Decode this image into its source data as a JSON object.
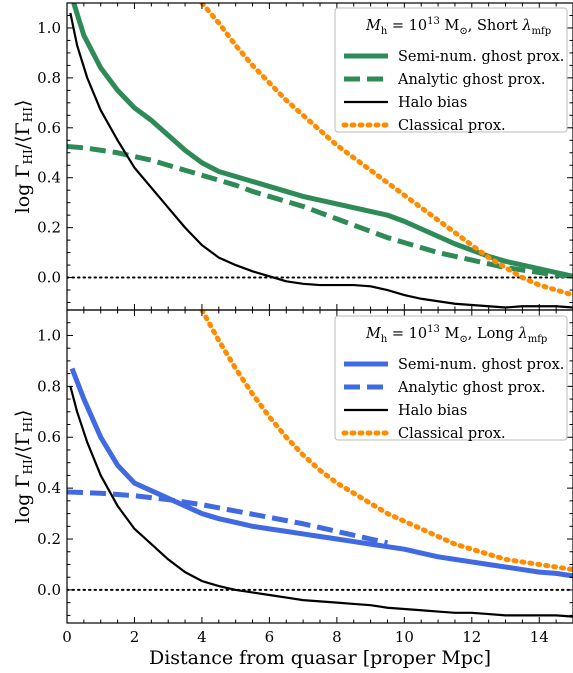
{
  "chart_data": [
    {
      "type": "line",
      "panel": "top",
      "xlabel": "",
      "ylabel": "log Γ_HI/⟨Γ_HI⟩",
      "xlim": [
        0,
        15
      ],
      "ylim": [
        -0.13,
        1.1
      ],
      "xticks": [
        0,
        2,
        4,
        6,
        8,
        10,
        12,
        14
      ],
      "yticks": [
        0.0,
        0.2,
        0.4,
        0.6,
        0.8,
        1.0
      ],
      "ytick_labels": [
        "0.0",
        "0.2",
        "0.4",
        "0.6",
        "0.8",
        "1.0"
      ],
      "legend_title": "M_h = 10^13 M_⊙, Short λ_mfp",
      "legend_position": "top-right",
      "reference_line": {
        "y": 0.0,
        "style": "dotted",
        "color": "#000000"
      },
      "series": [
        {
          "name": "Semi-num. ghost prox.",
          "color": "#2e8b57",
          "style": "solid",
          "width": "thick",
          "x": [
            0.2,
            0.5,
            1.0,
            1.5,
            2.0,
            2.5,
            3.0,
            3.5,
            4.0,
            4.5,
            5.0,
            5.5,
            6.0,
            6.5,
            7.0,
            7.5,
            8.0,
            8.5,
            9.0,
            9.5,
            10.0,
            10.5,
            11.0,
            11.5,
            12.0,
            12.5,
            13.0,
            13.5,
            14.0,
            14.5,
            15.0
          ],
          "y": [
            1.1,
            0.97,
            0.84,
            0.75,
            0.68,
            0.63,
            0.57,
            0.51,
            0.46,
            0.425,
            0.405,
            0.385,
            0.365,
            0.345,
            0.325,
            0.31,
            0.295,
            0.28,
            0.265,
            0.25,
            0.225,
            0.195,
            0.165,
            0.135,
            0.11,
            0.085,
            0.065,
            0.05,
            0.035,
            0.02,
            0.005
          ]
        },
        {
          "name": "Analytic ghost prox.",
          "color": "#2e8b57",
          "style": "dashed",
          "width": "thick",
          "x": [
            0.0,
            0.5,
            1.0,
            1.5,
            2.0,
            2.5,
            3.0,
            3.5,
            4.0,
            4.5,
            5.0,
            5.5,
            6.0,
            6.5,
            7.0,
            7.5,
            8.0,
            8.5,
            9.0,
            9.5,
            10.0,
            10.5,
            11.0,
            11.5,
            12.0,
            12.5,
            13.0,
            13.5,
            14.0,
            14.5,
            15.0
          ],
          "y": [
            0.525,
            0.52,
            0.51,
            0.5,
            0.485,
            0.47,
            0.45,
            0.43,
            0.41,
            0.39,
            0.37,
            0.345,
            0.325,
            0.305,
            0.285,
            0.26,
            0.235,
            0.21,
            0.185,
            0.16,
            0.14,
            0.12,
            0.1,
            0.085,
            0.07,
            0.055,
            0.04,
            0.03,
            0.02,
            0.01,
            0.005
          ]
        },
        {
          "name": "Halo bias",
          "color": "#000000",
          "style": "solid",
          "width": "thin",
          "x": [
            0.1,
            0.3,
            0.6,
            1.0,
            1.5,
            2.0,
            2.5,
            3.0,
            3.5,
            4.0,
            4.5,
            5.0,
            5.5,
            6.0,
            6.5,
            7.0,
            7.5,
            8.0,
            8.5,
            9.0,
            9.5,
            10.0,
            10.5,
            11.0,
            11.5,
            12.0,
            12.5,
            13.0,
            13.5,
            14.0,
            14.5,
            15.0
          ],
          "y": [
            1.06,
            0.93,
            0.8,
            0.67,
            0.55,
            0.44,
            0.36,
            0.28,
            0.2,
            0.13,
            0.08,
            0.05,
            0.025,
            0.005,
            -0.015,
            -0.025,
            -0.03,
            -0.03,
            -0.03,
            -0.035,
            -0.05,
            -0.07,
            -0.085,
            -0.095,
            -0.105,
            -0.11,
            -0.115,
            -0.12,
            -0.115,
            -0.115,
            -0.115,
            -0.12
          ]
        },
        {
          "name": "Classical prox.",
          "color": "#ff8c00",
          "style": "dotted",
          "width": "thick",
          "x": [
            4.0,
            4.5,
            5.0,
            5.5,
            6.0,
            6.5,
            7.0,
            7.5,
            8.0,
            8.5,
            9.0,
            9.5,
            10.0,
            10.5,
            11.0,
            11.5,
            12.0,
            12.5,
            13.0,
            13.5,
            14.0,
            14.5,
            15.0
          ],
          "y": [
            1.1,
            1.02,
            0.93,
            0.85,
            0.78,
            0.71,
            0.65,
            0.59,
            0.53,
            0.48,
            0.43,
            0.38,
            0.33,
            0.28,
            0.23,
            0.18,
            0.13,
            0.08,
            0.04,
            0.0,
            -0.03,
            -0.05,
            -0.07
          ]
        }
      ]
    },
    {
      "type": "line",
      "panel": "bottom",
      "xlabel": "Distance from quasar [proper Mpc]",
      "ylabel": "log Γ_HI/⟨Γ_HI⟩",
      "xlim": [
        0,
        15
      ],
      "ylim": [
        -0.13,
        1.1
      ],
      "xticks": [
        0,
        2,
        4,
        6,
        8,
        10,
        12,
        14
      ],
      "xtick_labels": [
        "0",
        "2",
        "4",
        "6",
        "8",
        "10",
        "12",
        "14"
      ],
      "yticks": [
        0.0,
        0.2,
        0.4,
        0.6,
        0.8,
        1.0
      ],
      "ytick_labels": [
        "0.0",
        "0.2",
        "0.4",
        "0.6",
        "0.8",
        "1.0"
      ],
      "legend_title": "M_h = 10^13 M_⊙, Long λ_mfp",
      "legend_position": "top-right",
      "reference_line": {
        "y": 0.0,
        "style": "dotted",
        "color": "#000000"
      },
      "series": [
        {
          "name": "Semi-num. ghost prox.",
          "color": "#4169e1",
          "style": "solid",
          "width": "thick",
          "x": [
            0.15,
            0.5,
            1.0,
            1.5,
            2.0,
            2.5,
            3.0,
            3.5,
            4.0,
            4.5,
            5.0,
            5.5,
            6.0,
            6.5,
            7.0,
            7.5,
            8.0,
            8.5,
            9.0,
            9.5,
            10.0,
            10.5,
            11.0,
            11.5,
            12.0,
            12.5,
            13.0,
            13.5,
            14.0,
            14.5,
            15.0
          ],
          "y": [
            0.87,
            0.75,
            0.6,
            0.49,
            0.42,
            0.39,
            0.36,
            0.33,
            0.3,
            0.28,
            0.265,
            0.25,
            0.24,
            0.23,
            0.22,
            0.21,
            0.2,
            0.19,
            0.18,
            0.17,
            0.16,
            0.145,
            0.13,
            0.12,
            0.11,
            0.1,
            0.09,
            0.08,
            0.07,
            0.065,
            0.055
          ]
        },
        {
          "name": "Analytic ghost prox.",
          "color": "#4169e1",
          "style": "dashed",
          "width": "thick",
          "x": [
            0.0,
            1.0,
            2.0,
            3.0,
            4.0,
            5.0,
            6.0,
            7.0,
            8.0,
            9.0,
            9.5
          ],
          "y": [
            0.385,
            0.38,
            0.37,
            0.355,
            0.335,
            0.31,
            0.285,
            0.26,
            0.23,
            0.2,
            0.185
          ]
        },
        {
          "name": "Halo bias",
          "color": "#000000",
          "style": "solid",
          "width": "thin",
          "x": [
            0.1,
            0.3,
            0.6,
            1.0,
            1.5,
            2.0,
            2.5,
            3.0,
            3.5,
            4.0,
            4.5,
            5.0,
            5.5,
            6.0,
            6.5,
            7.0,
            7.5,
            8.0,
            8.5,
            9.0,
            9.5,
            10.0,
            10.5,
            11.0,
            11.5,
            12.0,
            12.5,
            13.0,
            13.5,
            14.0,
            14.5,
            15.0
          ],
          "y": [
            0.8,
            0.7,
            0.58,
            0.45,
            0.33,
            0.24,
            0.18,
            0.12,
            0.07,
            0.035,
            0.015,
            0.0,
            -0.01,
            -0.02,
            -0.03,
            -0.04,
            -0.045,
            -0.05,
            -0.055,
            -0.06,
            -0.07,
            -0.075,
            -0.08,
            -0.085,
            -0.09,
            -0.09,
            -0.095,
            -0.1,
            -0.1,
            -0.1,
            -0.1,
            -0.105
          ]
        },
        {
          "name": "Classical prox.",
          "color": "#ff8c00",
          "style": "dotted",
          "width": "thick",
          "x": [
            4.0,
            4.5,
            5.0,
            5.5,
            6.0,
            6.5,
            7.0,
            7.5,
            8.0,
            8.5,
            9.0,
            9.5,
            10.0,
            10.5,
            11.0,
            11.5,
            12.0,
            12.5,
            13.0,
            13.5,
            14.0,
            14.5,
            15.0
          ],
          "y": [
            1.1,
            0.98,
            0.87,
            0.77,
            0.68,
            0.6,
            0.53,
            0.47,
            0.42,
            0.38,
            0.34,
            0.3,
            0.27,
            0.24,
            0.21,
            0.18,
            0.16,
            0.14,
            0.12,
            0.11,
            0.1,
            0.09,
            0.08
          ]
        }
      ]
    }
  ]
}
